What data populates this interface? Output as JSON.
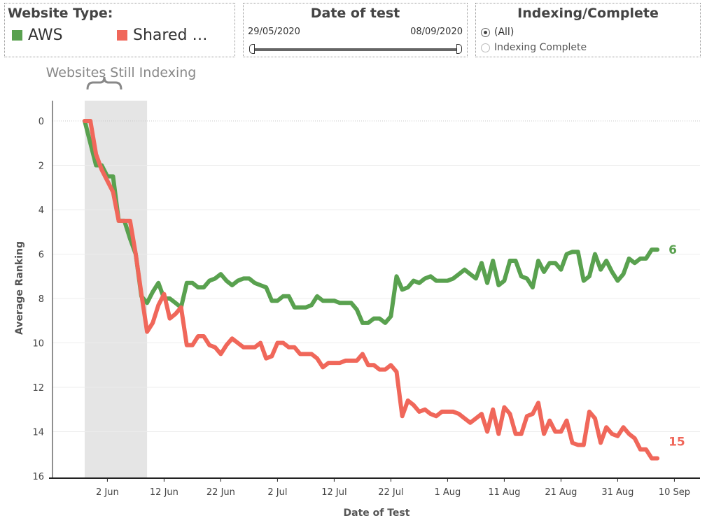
{
  "legend": {
    "title": "Website Type:",
    "items": [
      {
        "label": "AWS",
        "color": "#59a14f"
      },
      {
        "label": "Shared …",
        "color": "#f0675a"
      }
    ]
  },
  "date_filter": {
    "title": "Date of test",
    "start": "29/05/2020",
    "end": "08/09/2020"
  },
  "indexing_filter": {
    "title": "Indexing/Complete",
    "options": [
      {
        "label": "(All)",
        "selected": true
      },
      {
        "label": "Indexing Complete",
        "selected": false
      }
    ]
  },
  "chart_data": {
    "type": "line",
    "xlabel": "Date of Test",
    "ylabel": "Average Ranking",
    "y_reversed": true,
    "ylim": [
      0,
      16
    ],
    "yticks": [
      "0",
      "2",
      "4",
      "6",
      "8",
      "10",
      "12",
      "14",
      "16"
    ],
    "xticks": [
      {
        "date": "2020-06-02",
        "label": "2 Jun"
      },
      {
        "date": "2020-06-12",
        "label": "12 Jun"
      },
      {
        "date": "2020-06-22",
        "label": "22 Jun"
      },
      {
        "date": "2020-07-02",
        "label": "2 Jul"
      },
      {
        "date": "2020-07-12",
        "label": "12 Jul"
      },
      {
        "date": "2020-07-22",
        "label": "22 Jul"
      },
      {
        "date": "2020-08-01",
        "label": "1 Aug"
      },
      {
        "date": "2020-08-11",
        "label": "11 Aug"
      },
      {
        "date": "2020-08-21",
        "label": "21 Aug"
      },
      {
        "date": "2020-08-31",
        "label": "31 Aug"
      },
      {
        "date": "2020-09-10",
        "label": "10 Sep"
      }
    ],
    "annotation": {
      "text": "Websites Still Indexing",
      "start": "2020-05-29",
      "end": "2020-06-09"
    },
    "series": [
      {
        "name": "AWS",
        "color": "#59a14f",
        "end_label": "6",
        "points": [
          [
            "2020-05-29",
            0
          ],
          [
            "2020-05-31",
            2
          ],
          [
            "2020-06-01",
            2
          ],
          [
            "2020-06-02",
            2.5
          ],
          [
            "2020-06-03",
            2.5
          ],
          [
            "2020-06-04",
            4.5
          ],
          [
            "2020-06-05",
            4.5
          ],
          [
            "2020-06-06",
            5.3
          ],
          [
            "2020-06-07",
            6
          ],
          [
            "2020-06-08",
            7.9
          ],
          [
            "2020-06-09",
            8.2
          ],
          [
            "2020-06-10",
            7.7
          ],
          [
            "2020-06-11",
            7.3
          ],
          [
            "2020-06-12",
            8
          ],
          [
            "2020-06-13",
            8
          ],
          [
            "2020-06-14",
            8.2
          ],
          [
            "2020-06-15",
            8.4
          ],
          [
            "2020-06-16",
            7.3
          ],
          [
            "2020-06-17",
            7.3
          ],
          [
            "2020-06-18",
            7.5
          ],
          [
            "2020-06-19",
            7.5
          ],
          [
            "2020-06-20",
            7.2
          ],
          [
            "2020-06-21",
            7.1
          ],
          [
            "2020-06-22",
            6.9
          ],
          [
            "2020-06-23",
            7.2
          ],
          [
            "2020-06-24",
            7.4
          ],
          [
            "2020-06-25",
            7.2
          ],
          [
            "2020-06-26",
            7.1
          ],
          [
            "2020-06-27",
            7.1
          ],
          [
            "2020-06-28",
            7.3
          ],
          [
            "2020-06-29",
            7.4
          ],
          [
            "2020-06-30",
            7.5
          ],
          [
            "2020-07-01",
            8.1
          ],
          [
            "2020-07-02",
            8.1
          ],
          [
            "2020-07-03",
            7.9
          ],
          [
            "2020-07-04",
            7.9
          ],
          [
            "2020-07-05",
            8.4
          ],
          [
            "2020-07-06",
            8.4
          ],
          [
            "2020-07-07",
            8.4
          ],
          [
            "2020-07-08",
            8.3
          ],
          [
            "2020-07-09",
            7.9
          ],
          [
            "2020-07-10",
            8.1
          ],
          [
            "2020-07-11",
            8.1
          ],
          [
            "2020-07-12",
            8.1
          ],
          [
            "2020-07-13",
            8.2
          ],
          [
            "2020-07-14",
            8.2
          ],
          [
            "2020-07-15",
            8.2
          ],
          [
            "2020-07-16",
            8.5
          ],
          [
            "2020-07-17",
            9.1
          ],
          [
            "2020-07-18",
            9.1
          ],
          [
            "2020-07-19",
            8.9
          ],
          [
            "2020-07-20",
            8.9
          ],
          [
            "2020-07-21",
            9.1
          ],
          [
            "2020-07-22",
            8.8
          ],
          [
            "2020-07-23",
            7
          ],
          [
            "2020-07-24",
            7.6
          ],
          [
            "2020-07-25",
            7.5
          ],
          [
            "2020-07-26",
            7.2
          ],
          [
            "2020-07-27",
            7.3
          ],
          [
            "2020-07-28",
            7.1
          ],
          [
            "2020-07-29",
            7
          ],
          [
            "2020-07-30",
            7.2
          ],
          [
            "2020-07-31",
            7.2
          ],
          [
            "2020-08-01",
            7.2
          ],
          [
            "2020-08-02",
            7.1
          ],
          [
            "2020-08-03",
            6.9
          ],
          [
            "2020-08-04",
            6.7
          ],
          [
            "2020-08-05",
            6.9
          ],
          [
            "2020-08-06",
            7.1
          ],
          [
            "2020-08-07",
            6.4
          ],
          [
            "2020-08-08",
            7.3
          ],
          [
            "2020-08-09",
            6.3
          ],
          [
            "2020-08-10",
            7.4
          ],
          [
            "2020-08-11",
            7.2
          ],
          [
            "2020-08-12",
            6.3
          ],
          [
            "2020-08-13",
            6.3
          ],
          [
            "2020-08-14",
            7
          ],
          [
            "2020-08-15",
            7.1
          ],
          [
            "2020-08-16",
            7.5
          ],
          [
            "2020-08-17",
            6.3
          ],
          [
            "2020-08-18",
            6.8
          ],
          [
            "2020-08-19",
            6.4
          ],
          [
            "2020-08-20",
            6.4
          ],
          [
            "2020-08-21",
            6.7
          ],
          [
            "2020-08-22",
            6
          ],
          [
            "2020-08-23",
            5.9
          ],
          [
            "2020-08-24",
            5.9
          ],
          [
            "2020-08-25",
            7.2
          ],
          [
            "2020-08-26",
            7
          ],
          [
            "2020-08-27",
            6
          ],
          [
            "2020-08-28",
            6.7
          ],
          [
            "2020-08-29",
            6.3
          ],
          [
            "2020-08-30",
            6.8
          ],
          [
            "2020-08-31",
            7.2
          ],
          [
            "2020-09-01",
            6.9
          ],
          [
            "2020-09-02",
            6.2
          ],
          [
            "2020-09-03",
            6.4
          ],
          [
            "2020-09-04",
            6.2
          ],
          [
            "2020-09-05",
            6.2
          ],
          [
            "2020-09-06",
            5.8
          ],
          [
            "2020-09-07",
            5.8
          ]
        ]
      },
      {
        "name": "Shared …",
        "color": "#f0675a",
        "end_label": "15",
        "points": [
          [
            "2020-05-29",
            0
          ],
          [
            "2020-05-30",
            0
          ],
          [
            "2020-05-31",
            1.5
          ],
          [
            "2020-06-01",
            2.2
          ],
          [
            "2020-06-02",
            2.7
          ],
          [
            "2020-06-03",
            3.2
          ],
          [
            "2020-06-04",
            4.5
          ],
          [
            "2020-06-05",
            4.5
          ],
          [
            "2020-06-06",
            4.5
          ],
          [
            "2020-06-07",
            6
          ],
          [
            "2020-06-08",
            7.8
          ],
          [
            "2020-06-09",
            9.5
          ],
          [
            "2020-06-10",
            9.1
          ],
          [
            "2020-06-11",
            8.3
          ],
          [
            "2020-06-12",
            7.8
          ],
          [
            "2020-06-13",
            8.9
          ],
          [
            "2020-06-14",
            8.7
          ],
          [
            "2020-06-15",
            8.4
          ],
          [
            "2020-06-16",
            10.1
          ],
          [
            "2020-06-17",
            10.1
          ],
          [
            "2020-06-18",
            9.7
          ],
          [
            "2020-06-19",
            9.7
          ],
          [
            "2020-06-20",
            10.1
          ],
          [
            "2020-06-21",
            10.2
          ],
          [
            "2020-06-22",
            10.5
          ],
          [
            "2020-06-23",
            10.1
          ],
          [
            "2020-06-24",
            9.8
          ],
          [
            "2020-06-25",
            10
          ],
          [
            "2020-06-26",
            10.2
          ],
          [
            "2020-06-27",
            10.2
          ],
          [
            "2020-06-28",
            10.2
          ],
          [
            "2020-06-29",
            10
          ],
          [
            "2020-06-30",
            10.7
          ],
          [
            "2020-07-01",
            10.6
          ],
          [
            "2020-07-02",
            10
          ],
          [
            "2020-07-03",
            10
          ],
          [
            "2020-07-04",
            10.2
          ],
          [
            "2020-07-05",
            10.2
          ],
          [
            "2020-07-06",
            10.5
          ],
          [
            "2020-07-07",
            10.5
          ],
          [
            "2020-07-08",
            10.5
          ],
          [
            "2020-07-09",
            10.7
          ],
          [
            "2020-07-10",
            11.1
          ],
          [
            "2020-07-11",
            10.9
          ],
          [
            "2020-07-12",
            10.9
          ],
          [
            "2020-07-13",
            10.9
          ],
          [
            "2020-07-14",
            10.8
          ],
          [
            "2020-07-15",
            10.8
          ],
          [
            "2020-07-16",
            10.8
          ],
          [
            "2020-07-17",
            10.5
          ],
          [
            "2020-07-18",
            11
          ],
          [
            "2020-07-19",
            11
          ],
          [
            "2020-07-20",
            11.2
          ],
          [
            "2020-07-21",
            11.2
          ],
          [
            "2020-07-22",
            11
          ],
          [
            "2020-07-23",
            11.3
          ],
          [
            "2020-07-24",
            13.3
          ],
          [
            "2020-07-25",
            12.6
          ],
          [
            "2020-07-26",
            12.8
          ],
          [
            "2020-07-27",
            13.1
          ],
          [
            "2020-07-28",
            13
          ],
          [
            "2020-07-29",
            13.2
          ],
          [
            "2020-07-30",
            13.3
          ],
          [
            "2020-07-31",
            13.1
          ],
          [
            "2020-08-01",
            13.1
          ],
          [
            "2020-08-02",
            13.1
          ],
          [
            "2020-08-03",
            13.2
          ],
          [
            "2020-08-04",
            13.4
          ],
          [
            "2020-08-05",
            13.6
          ],
          [
            "2020-08-06",
            13.4
          ],
          [
            "2020-08-07",
            13.2
          ],
          [
            "2020-08-08",
            14
          ],
          [
            "2020-08-09",
            13
          ],
          [
            "2020-08-10",
            14.1
          ],
          [
            "2020-08-11",
            12.9
          ],
          [
            "2020-08-12",
            13.2
          ],
          [
            "2020-08-13",
            14.1
          ],
          [
            "2020-08-14",
            14.1
          ],
          [
            "2020-08-15",
            13.3
          ],
          [
            "2020-08-16",
            13.2
          ],
          [
            "2020-08-17",
            12.7
          ],
          [
            "2020-08-18",
            14.1
          ],
          [
            "2020-08-19",
            13.5
          ],
          [
            "2020-08-20",
            14
          ],
          [
            "2020-08-21",
            14
          ],
          [
            "2020-08-22",
            13.5
          ],
          [
            "2020-08-23",
            14.5
          ],
          [
            "2020-08-24",
            14.6
          ],
          [
            "2020-08-25",
            14.6
          ],
          [
            "2020-08-26",
            13.1
          ],
          [
            "2020-08-27",
            13.4
          ],
          [
            "2020-08-28",
            14.5
          ],
          [
            "2020-08-29",
            13.8
          ],
          [
            "2020-08-30",
            14.1
          ],
          [
            "2020-08-31",
            14.2
          ],
          [
            "2020-09-01",
            13.8
          ],
          [
            "2020-09-02",
            14.1
          ],
          [
            "2020-09-03",
            14.3
          ],
          [
            "2020-09-04",
            14.8
          ],
          [
            "2020-09-05",
            14.8
          ],
          [
            "2020-09-06",
            15.2
          ],
          [
            "2020-09-07",
            15.2
          ]
        ]
      }
    ]
  }
}
